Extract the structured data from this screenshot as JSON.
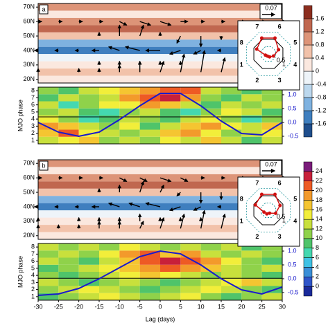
{
  "chart_data": [
    {
      "type": "hovmoller",
      "label": "a",
      "xlim": [
        -30,
        30
      ],
      "lat_lim": [
        17.5,
        72.5
      ],
      "lat_ticks": [
        {
          "value": 70,
          "label": "70N"
        },
        {
          "value": 60,
          "label": "60N"
        },
        {
          "value": 50,
          "label": "50N"
        },
        {
          "value": 40,
          "label": "40N"
        },
        {
          "value": 30,
          "label": "30N"
        },
        {
          "value": 20,
          "label": "20N"
        }
      ],
      "shading": {
        "lats": [
          70,
          65,
          60,
          55,
          50,
          45,
          40,
          35,
          30,
          25,
          20
        ],
        "values": [
          1.0,
          0.2,
          0.9,
          1.2,
          0.6,
          -1.0,
          -1.4,
          -0.2,
          0.3,
          0.4,
          0.2
        ]
      },
      "vectors": {
        "lags": [
          -30,
          -25,
          -20,
          -15,
          -10,
          -5,
          0,
          5,
          10,
          15,
          20,
          25,
          30
        ],
        "lats": [
          60,
          50,
          40,
          30,
          25
        ],
        "u": [
          [
            0.02,
            0.02,
            0.02,
            0.02,
            0.04,
            0.06,
            0.06,
            0.04,
            0.02,
            0.02,
            0.02,
            0.02,
            0.02
          ],
          [
            0,
            0,
            0,
            0,
            0,
            0.02,
            0,
            -0.02,
            0,
            0,
            0,
            0,
            0
          ],
          [
            -0.02,
            -0.02,
            -0.02,
            -0.04,
            -0.06,
            -0.08,
            -0.08,
            -0.06,
            -0.04,
            -0.02,
            -0.02,
            -0.02,
            -0.02
          ],
          [
            0,
            0,
            0,
            0,
            0,
            0,
            0,
            0,
            0,
            0,
            0,
            0,
            0
          ],
          [
            0,
            0,
            0,
            0,
            0,
            0,
            0.02,
            0.02,
            0.02,
            0.02,
            0,
            0,
            0
          ]
        ],
        "v": [
          [
            0,
            0,
            0,
            0,
            -0.02,
            -0.02,
            -0.02,
            0,
            0,
            0,
            0,
            0,
            0
          ],
          [
            0,
            0,
            0,
            0.02,
            0.06,
            0.06,
            0.02,
            -0.04,
            -0.06,
            -0.02,
            0,
            0,
            0
          ],
          [
            0,
            0,
            0,
            0,
            0.02,
            0.02,
            0,
            -0.02,
            -0.02,
            0,
            0,
            0,
            0
          ],
          [
            0,
            0,
            0,
            0.02,
            0.02,
            0.02,
            0.02,
            0.02,
            0,
            0,
            0,
            0,
            0
          ],
          [
            0.02,
            0,
            0.02,
            0.02,
            0.04,
            0.06,
            0.06,
            0.1,
            0.12,
            0.08,
            0.04,
            0.02,
            0.02
          ]
        ]
      },
      "ref_vector": 0.07,
      "ylabel": "MJO phase",
      "phase_ylim": [
        0.5,
        8.5
      ],
      "phase_ticks": [
        1,
        2,
        3,
        4,
        5,
        6,
        7,
        8
      ],
      "heatmap": {
        "bins": [
          -30,
          -25,
          -20,
          -15,
          -10,
          -5,
          0,
          5,
          10,
          15,
          20,
          25,
          30
        ],
        "values": [
          [
            12,
            14,
            16,
            10,
            12,
            10,
            14,
            12,
            16,
            12,
            8,
            12
          ],
          [
            16,
            20,
            14,
            12,
            10,
            12,
            16,
            18,
            14,
            10,
            12,
            14
          ],
          [
            18,
            16,
            12,
            10,
            14,
            8,
            12,
            16,
            18,
            14,
            12,
            16
          ],
          [
            14,
            10,
            6,
            8,
            12,
            10,
            8,
            12,
            14,
            10,
            6,
            10
          ],
          [
            10,
            12,
            8,
            6,
            10,
            12,
            8,
            6,
            10,
            14,
            12,
            8
          ],
          [
            12,
            6,
            10,
            14,
            14,
            18,
            16,
            12,
            8,
            12,
            10,
            12
          ],
          [
            8,
            12,
            10,
            12,
            18,
            20,
            22,
            18,
            10,
            8,
            12,
            10
          ],
          [
            10,
            8,
            12,
            14,
            16,
            18,
            20,
            20,
            12,
            10,
            8,
            10
          ]
        ]
      },
      "hline": 4.3,
      "y2lim": [
        -0.775,
        1.275
      ],
      "y2ticks": [
        {
          "value": 1,
          "label": "1.0"
        },
        0.5,
        {
          "value": 0,
          "label": "0.0"
        },
        -0.5
      ],
      "curve": {
        "color": "#1a1acc",
        "x": [
          -30,
          -25,
          -20,
          -15,
          -10,
          -5,
          0,
          5,
          10,
          15,
          20,
          25,
          30
        ],
        "values": [
          0.0,
          -0.35,
          -0.5,
          -0.35,
          0.1,
          0.6,
          1.05,
          1.05,
          0.6,
          0.05,
          -0.4,
          -0.45,
          0.0
        ]
      },
      "colorbar": {
        "ticks": [
          -1.6,
          -1.2,
          -0.8,
          -0.4,
          0,
          0.4,
          0.8,
          1.2,
          1.6
        ],
        "colors": [
          "#1f4e8c",
          "#3f7fbf",
          "#7fb2e0",
          "#bcd8ee",
          "#eef4f9",
          "#fbe8df",
          "#f2c2aa",
          "#dd9478",
          "#c0674f",
          "#8c2d1e"
        ]
      },
      "inset": {
        "phase_labels": [
          "1",
          "2",
          "3",
          "4",
          "5",
          "6",
          "7",
          "8"
        ],
        "ring_ticks": [
          0.5,
          1
        ],
        "values": [
          0.2,
          0.15,
          0.2,
          0.35,
          0.7,
          1.1,
          1.1,
          0.8
        ]
      }
    },
    {
      "type": "hovmoller",
      "label": "b",
      "xlim": [
        -30,
        30
      ],
      "xticks": [
        -30,
        -25,
        -20,
        -15,
        -10,
        -5,
        0,
        5,
        10,
        15,
        20,
        25,
        30
      ],
      "xlabel": "Lag (days)",
      "lat_lim": [
        17.5,
        72.5
      ],
      "lat_ticks": [
        {
          "value": 70,
          "label": "70N"
        },
        {
          "value": 60,
          "label": "60N"
        },
        {
          "value": 50,
          "label": "50N"
        },
        {
          "value": 40,
          "label": "40N"
        },
        {
          "value": 30,
          "label": "30N"
        },
        {
          "value": 20,
          "label": "20N"
        }
      ],
      "shading": {
        "lats": [
          70,
          65,
          60,
          55,
          50,
          45,
          40,
          35,
          30,
          25,
          20
        ],
        "values": [
          1.0,
          0.3,
          0.9,
          1.2,
          0.5,
          -0.9,
          -1.4,
          -0.3,
          0.3,
          0.4,
          0.2
        ]
      },
      "vectors": {
        "lags": [
          -30,
          -25,
          -20,
          -15,
          -10,
          -5,
          0,
          5,
          10,
          15,
          20,
          25,
          30
        ],
        "lats": [
          60,
          50,
          40,
          30,
          25
        ],
        "u": [
          [
            0.02,
            0.02,
            0.02,
            0.02,
            0.04,
            0.04,
            0.06,
            0.04,
            0.02,
            0.02,
            0.02,
            0.02,
            0.02
          ],
          [
            0,
            0,
            0,
            0,
            0,
            0.02,
            0.02,
            -0.02,
            0,
            0,
            0,
            0,
            0
          ],
          [
            -0.02,
            -0.02,
            -0.02,
            -0.04,
            -0.06,
            -0.06,
            -0.08,
            -0.06,
            -0.04,
            -0.02,
            -0.02,
            -0.02,
            -0.02
          ],
          [
            0,
            0,
            0,
            0,
            0,
            0,
            0,
            0,
            0,
            0,
            0,
            0,
            0
          ],
          [
            0,
            0,
            0,
            0,
            0,
            0.02,
            0.02,
            0.02,
            0.02,
            0.02,
            0,
            0,
            0
          ]
        ],
        "v": [
          [
            0,
            0,
            0,
            0,
            -0.02,
            -0.02,
            -0.02,
            -0.02,
            0,
            0,
            0,
            0,
            0
          ],
          [
            0,
            0,
            0,
            0.02,
            0.04,
            0.06,
            0.04,
            -0.02,
            -0.06,
            -0.04,
            0,
            0,
            0
          ],
          [
            0,
            0,
            0,
            0,
            0.02,
            0.02,
            0.02,
            -0.02,
            -0.02,
            0,
            0,
            0,
            0
          ],
          [
            0.02,
            0,
            0.02,
            0.02,
            0.02,
            0.04,
            0.02,
            0.02,
            0.02,
            0,
            0,
            0,
            0
          ],
          [
            0.02,
            0.02,
            0.02,
            0.04,
            0.04,
            0.04,
            0.06,
            0.08,
            0.1,
            0.08,
            0.04,
            0.02,
            0.02
          ]
        ]
      },
      "ref_vector": 0.07,
      "ylabel": "MJO phase",
      "phase_ylim": [
        0.5,
        8.5
      ],
      "phase_ticks": [
        1,
        2,
        3,
        4,
        5,
        6,
        7,
        8
      ],
      "heatmap": {
        "bins": [
          -30,
          -25,
          -20,
          -15,
          -10,
          -5,
          0,
          5,
          10,
          15,
          20,
          25,
          30
        ],
        "values": [
          [
            8,
            10,
            12,
            14,
            12,
            10,
            12,
            14,
            10,
            8,
            10,
            12
          ],
          [
            10,
            12,
            14,
            12,
            10,
            8,
            10,
            12,
            14,
            12,
            10,
            8
          ],
          [
            12,
            10,
            8,
            10,
            12,
            10,
            8,
            10,
            12,
            14,
            16,
            12
          ],
          [
            10,
            8,
            10,
            12,
            14,
            16,
            14,
            12,
            10,
            12,
            10,
            8
          ],
          [
            8,
            10,
            12,
            14,
            16,
            18,
            20,
            18,
            16,
            12,
            10,
            12
          ],
          [
            12,
            10,
            8,
            12,
            16,
            20,
            22,
            20,
            18,
            14,
            10,
            8
          ],
          [
            10,
            12,
            10,
            14,
            18,
            20,
            16,
            18,
            12,
            10,
            12,
            10
          ],
          [
            12,
            10,
            12,
            10,
            14,
            12,
            10,
            12,
            10,
            12,
            8,
            10
          ]
        ]
      },
      "hline": 3.6,
      "y2lim": [
        -0.775,
        1.275
      ],
      "y2ticks": [
        {
          "value": 1,
          "label": "1.0"
        },
        0.5,
        {
          "value": 0,
          "label": "0.0"
        },
        -0.5
      ],
      "curve": {
        "color": "#1a1acc",
        "x": [
          -30,
          -25,
          -20,
          -15,
          -10,
          -5,
          0,
          5,
          10,
          15,
          20,
          25,
          30
        ],
        "values": [
          -0.6,
          -0.55,
          -0.35,
          0.0,
          0.4,
          0.8,
          1.0,
          0.9,
          0.5,
          0.0,
          -0.4,
          -0.55,
          -0.3
        ]
      },
      "colorbar": {
        "ticks": [
          0,
          2,
          4,
          6,
          8,
          10,
          12,
          14,
          16,
          18,
          20,
          22,
          24
        ],
        "colors": [
          "#1a2a9a",
          "#2f55c9",
          "#3a8fd8",
          "#3fc2e5",
          "#44d8b0",
          "#4fc46a",
          "#8fd24a",
          "#c8e03c",
          "#f2ee3a",
          "#f5c531",
          "#f39a2b",
          "#ee5a24",
          "#c8203a",
          "#7a1c7a"
        ]
      },
      "inset": {
        "phase_labels": [
          "1",
          "2",
          "3",
          "4",
          "5",
          "6",
          "7",
          "8"
        ],
        "ring_ticks": [
          0.5,
          1
        ],
        "values": [
          0.3,
          0.25,
          0.2,
          0.5,
          0.8,
          1.1,
          1.1,
          0.9
        ]
      }
    }
  ]
}
